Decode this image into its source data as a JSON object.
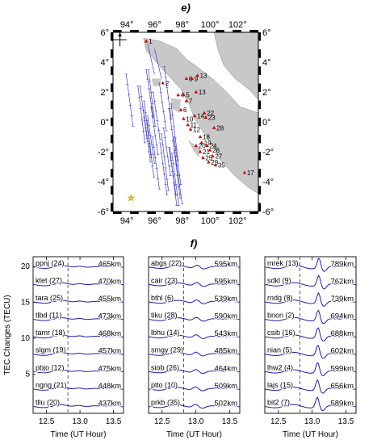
{
  "chart_data": [
    {
      "type": "map",
      "title": "e)",
      "xlim": [
        93,
        103.5
      ],
      "ylim": [
        -6,
        6
      ],
      "x_ticks": [
        "94°",
        "96°",
        "98°",
        "100°",
        "102°"
      ],
      "x_tick_values": [
        94,
        96,
        98,
        100,
        102
      ],
      "y_ticks": [
        "6°",
        "4°",
        "2°",
        "0°",
        "-2°",
        "-4°",
        "-6°"
      ],
      "y_tick_values": [
        6,
        4,
        2,
        0,
        -2,
        -4,
        -6
      ],
      "epicenter": {
        "lon": 94.3,
        "lat": -5.1
      },
      "stations": [
        {
          "id": "1",
          "lon": 95.4,
          "lat": 5.4
        },
        {
          "id": "2",
          "lon": 96.6,
          "lat": 2.6
        },
        {
          "id": "8",
          "lon": 98.3,
          "lat": 2.9
        },
        {
          "id": "9",
          "lon": 98.7,
          "lat": 2.9
        },
        {
          "id": "13",
          "lon": 99.1,
          "lat": 3.1
        },
        {
          "id": "13",
          "lon": 99.0,
          "lat": 2.0
        },
        {
          "id": "4",
          "lon": 97.7,
          "lat": 1.8
        },
        {
          "id": "5",
          "lon": 98.1,
          "lat": 1.8
        },
        {
          "id": "7",
          "lon": 98.3,
          "lat": 1.4
        },
        {
          "id": "6",
          "lon": 97.9,
          "lat": 0.8
        },
        {
          "id": "10",
          "lon": 98.1,
          "lat": 0.2
        },
        {
          "id": "14",
          "lon": 98.9,
          "lat": 0.4
        },
        {
          "id": "22",
          "lon": 99.6,
          "lat": 0.6
        },
        {
          "id": "23",
          "lon": 99.7,
          "lat": 0.3
        },
        {
          "id": "11",
          "lon": 98.4,
          "lat": -0.2
        },
        {
          "id": "12",
          "lon": 98.6,
          "lat": -0.5
        },
        {
          "id": "28",
          "lon": 100.3,
          "lat": -0.4
        },
        {
          "id": "18",
          "lon": 99.3,
          "lat": -1.0
        },
        {
          "id": "19",
          "lon": 99.4,
          "lat": -1.4
        },
        {
          "id": "20",
          "lon": 99.0,
          "lat": -1.6
        },
        {
          "id": "24",
          "lon": 99.8,
          "lat": -1.6
        },
        {
          "id": "26",
          "lon": 100.0,
          "lat": -1.9
        },
        {
          "id": "21",
          "lon": 99.3,
          "lat": -2.0
        },
        {
          "id": "27",
          "lon": 100.2,
          "lat": -2.3
        },
        {
          "id": "25",
          "lon": 99.5,
          "lat": -2.4
        },
        {
          "id": "29",
          "lon": 99.9,
          "lat": -2.7
        },
        {
          "id": "35",
          "lon": 100.4,
          "lat": -2.9
        },
        {
          "id": "17",
          "lon": 102.5,
          "lat": -3.4
        }
      ]
    },
    {
      "type": "line",
      "title": "f)",
      "ylabel": "TEC Changes (TECU)",
      "xlabel": "Time (UT Hour)",
      "xlim": [
        12.3,
        13.65
      ],
      "x_ticks": [
        12.5,
        13.0,
        13.5
      ],
      "x_tick_labels": [
        "12.5",
        "13.0",
        "13.5"
      ],
      "event_time": 12.82,
      "panels": [
        {
          "series": [
            {
              "name": "ppnj (24)",
              "distance": "465km"
            },
            {
              "name": "ktet (27)",
              "distance": "470km"
            },
            {
              "name": "tara (25)",
              "distance": "455km"
            },
            {
              "name": "tlbd (11)",
              "distance": "473km"
            },
            {
              "name": "tamr (18)",
              "distance": "468km"
            },
            {
              "name": "slgm (19)",
              "distance": "457km"
            },
            {
              "name": "pbjo (12)",
              "distance": "475km"
            },
            {
              "name": "ngng (21)",
              "distance": "448km"
            },
            {
              "name": "tllu (20)",
              "distance": "437km"
            }
          ]
        },
        {
          "series": [
            {
              "name": "abgs (22)",
              "distance": "595km"
            },
            {
              "name": "cair (23)",
              "distance": "595km"
            },
            {
              "name": "bthl (6)",
              "distance": "539km"
            },
            {
              "name": "tiku (28)",
              "distance": "590km"
            },
            {
              "name": "lbhu (14)",
              "distance": "543km"
            },
            {
              "name": "smgy (29)",
              "distance": "485km"
            },
            {
              "name": "siob (26)",
              "distance": "464km"
            },
            {
              "name": "ptlo (10)",
              "distance": "509km"
            },
            {
              "name": "prkb (35)",
              "distance": "502km"
            }
          ]
        },
        {
          "series": [
            {
              "name": "mrek (13)",
              "distance": "789km"
            },
            {
              "name": "sdkl (9)",
              "distance": "762km"
            },
            {
              "name": "rndg (8)",
              "distance": "739km"
            },
            {
              "name": "bnon (2)",
              "distance": "694km"
            },
            {
              "name": "csib (16)",
              "distance": "688km"
            },
            {
              "name": "nian (5)",
              "distance": "602km"
            },
            {
              "name": "lhw2 (4)",
              "distance": "599km"
            },
            {
              "name": "lajs (15)",
              "distance": "656km"
            },
            {
              "name": "bit2 (7)",
              "distance": "589km"
            }
          ]
        }
      ]
    }
  ],
  "colors": {
    "land": "#c8c8c8",
    "trace": "#1c1cb4",
    "track": "#4040c8",
    "station": "#cc0000",
    "epicenter": "#e8c020"
  },
  "y_scale_ticks": [
    "5",
    "10",
    "15",
    "20"
  ]
}
